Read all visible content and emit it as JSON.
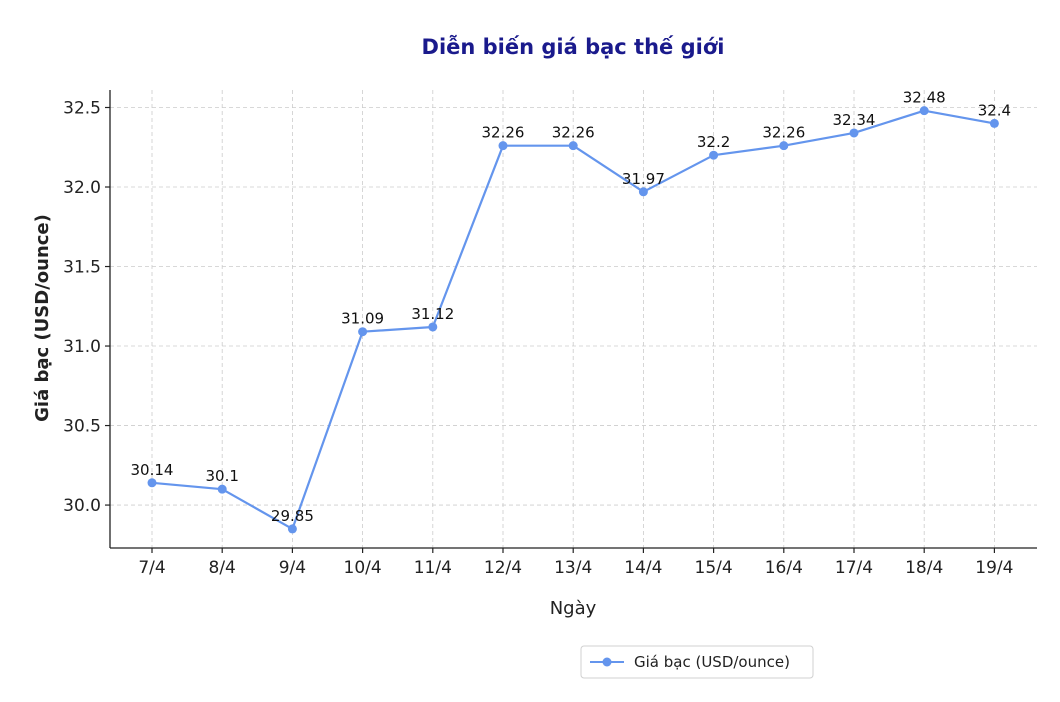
{
  "chart_data": {
    "type": "line",
    "title": "Diễn biến giá bạc thế giới",
    "xlabel": "Ngày",
    "ylabel": "Giá bạc (USD/ounce)",
    "categories": [
      "7/4",
      "8/4",
      "9/4",
      "10/4",
      "11/4",
      "12/4",
      "13/4",
      "14/4",
      "15/4",
      "16/4",
      "17/4",
      "18/4",
      "19/4"
    ],
    "series": [
      {
        "name": "Giá bạc (USD/ounce)",
        "values": [
          30.14,
          30.1,
          29.85,
          31.09,
          31.12,
          32.26,
          32.26,
          31.97,
          32.2,
          32.26,
          32.34,
          32.48,
          32.4
        ],
        "data_labels": [
          "30.14",
          "30.1",
          "29.85",
          "31.09",
          "31.12",
          "32.26",
          "32.26",
          "31.97",
          "32.2",
          "32.26",
          "32.34",
          "32.48",
          "32.4"
        ],
        "color": "#6495ED"
      }
    ],
    "ylim": [
      29.73,
      32.61
    ],
    "yticks": [
      30.0,
      30.5,
      31.0,
      31.5,
      32.0,
      32.5
    ],
    "ytick_labels": [
      "30.0",
      "30.5",
      "31.0",
      "31.5",
      "32.0",
      "32.5"
    ],
    "grid": true,
    "legend_position": "bottom-right",
    "title_color": "#1a1a8c"
  }
}
